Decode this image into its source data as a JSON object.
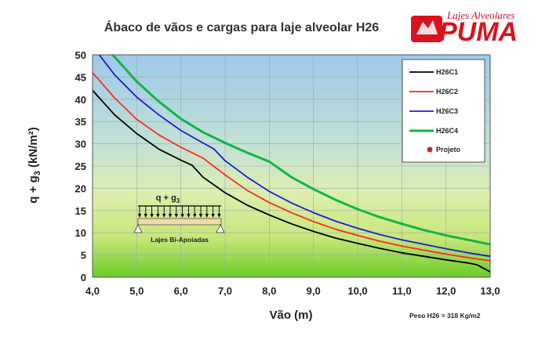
{
  "brand": {
    "tagline": "Lajes Alveolares",
    "name": "PUMA",
    "colors": {
      "primary": "#d7141d"
    }
  },
  "footer_note": "Peso H26  = 318 Kg/m2",
  "diagram": {
    "load_label": "q + g",
    "load_label_sub": "3",
    "caption": "Lajes Bi-Apoiadas"
  },
  "chart_data": {
    "type": "line",
    "title": "Ábaco de vãos e cargas para laje alveolar H26",
    "xlabel": "Vão (m)",
    "ylabel": "q + g",
    "ylabel_sub": "3",
    "ylabel_suffix": " (kN/m²)",
    "xlim": [
      4,
      13
    ],
    "ylim": [
      0,
      50
    ],
    "x_ticks": [
      "4,0",
      "5,0",
      "6,0",
      "7,0",
      "8,0",
      "9,0",
      "10,0",
      "11,0",
      "12,0",
      "13,0"
    ],
    "y_ticks": [
      "0",
      "5",
      "10",
      "15",
      "20",
      "25",
      "30",
      "35",
      "40",
      "45",
      "50"
    ],
    "grid": true,
    "legend_position": "top-right",
    "background_gradient": [
      "#a8d0ec",
      "#cfe8c8",
      "#e6f09a",
      "#7ad232"
    ],
    "series": [
      {
        "name": "H26C1",
        "color": "#000000",
        "x": [
          4.0,
          4.5,
          5.0,
          5.5,
          6.0,
          6.25,
          6.5,
          7.0,
          7.5,
          8.0,
          8.5,
          9.0,
          9.5,
          10.0,
          10.5,
          11.0,
          11.5,
          12.0,
          12.5,
          12.7,
          13.0
        ],
        "y": [
          42.0,
          36.5,
          32.3,
          28.8,
          26.3,
          25.2,
          22.5,
          19.0,
          16.2,
          14.0,
          12.0,
          10.3,
          8.8,
          7.6,
          6.5,
          5.5,
          4.7,
          3.9,
          3.2,
          2.8,
          1.2
        ]
      },
      {
        "name": "H26C2",
        "color": "#ff2a1a",
        "x": [
          4.0,
          4.5,
          5.0,
          5.5,
          6.0,
          6.5,
          7.0,
          7.5,
          8.0,
          8.5,
          9.0,
          9.5,
          10.0,
          10.5,
          11.0,
          11.5,
          12.0,
          12.5,
          13.0
        ],
        "y": [
          46.0,
          40.3,
          35.5,
          32.0,
          29.2,
          26.8,
          23.0,
          19.5,
          16.8,
          14.5,
          12.5,
          10.8,
          9.4,
          8.1,
          7.0,
          6.1,
          5.2,
          4.4,
          3.7
        ]
      },
      {
        "name": "H26C3",
        "color": "#1a1adc",
        "x": [
          4.0,
          4.15,
          4.5,
          5.0,
          5.5,
          6.0,
          6.5,
          6.75,
          7.0,
          7.5,
          8.0,
          8.5,
          9.0,
          9.5,
          10.0,
          10.5,
          11.0,
          11.5,
          12.0,
          12.5,
          13.0
        ],
        "y": [
          52.0,
          50.0,
          45.5,
          40.5,
          36.5,
          33.0,
          30.2,
          28.8,
          26.2,
          22.5,
          19.3,
          16.7,
          14.5,
          12.6,
          11.0,
          9.6,
          8.4,
          7.4,
          6.4,
          5.5,
          4.7
        ]
      },
      {
        "name": "H26C4",
        "color": "#12b34a",
        "x": [
          4.0,
          4.5,
          5.0,
          5.5,
          6.0,
          6.5,
          7.0,
          7.5,
          8.0,
          8.5,
          9.0,
          9.5,
          10.0,
          10.5,
          11.0,
          11.5,
          12.0,
          12.5,
          13.0
        ],
        "y": [
          54.0,
          49.5,
          44.0,
          39.5,
          35.6,
          32.6,
          30.2,
          28.0,
          26.0,
          22.5,
          19.8,
          17.4,
          15.3,
          13.5,
          12.0,
          10.6,
          9.4,
          8.4,
          7.4
        ]
      }
    ],
    "markers": [
      {
        "name": "Projeto",
        "color": "#cc2222",
        "points": []
      }
    ]
  }
}
